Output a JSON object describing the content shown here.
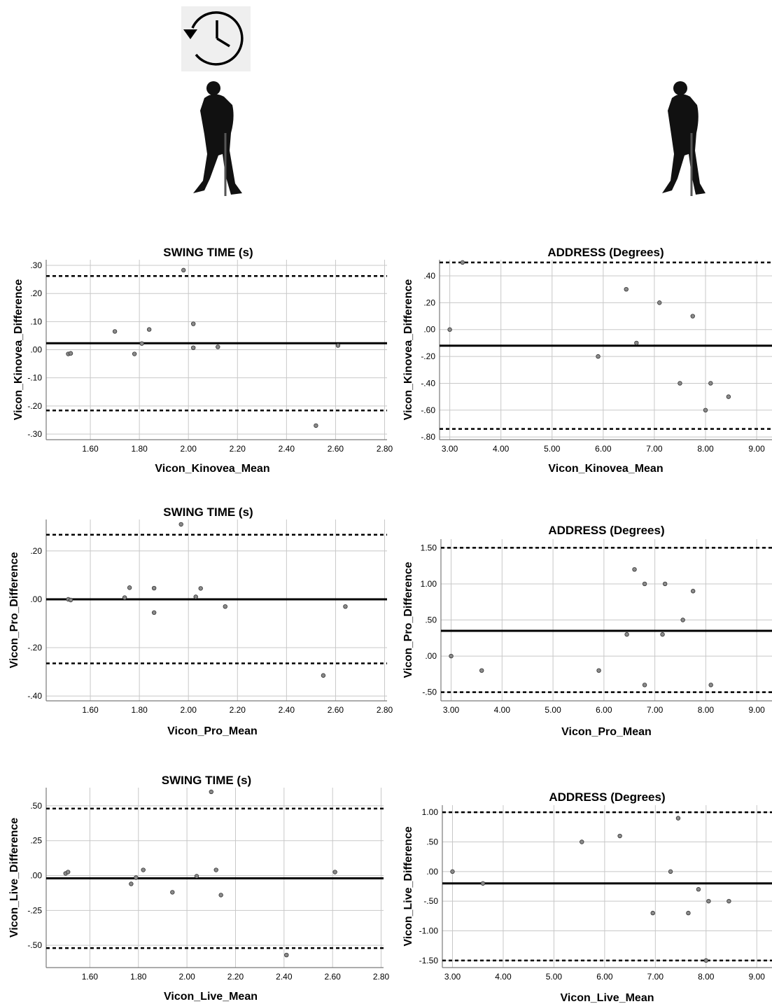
{
  "header": {
    "clock_icon": "history-clock-icon",
    "left_figure_icon": "golfer-silhouette-icon",
    "right_figure_icon": "golfer-silhouette-icon"
  },
  "colors": {
    "grid": "#c8c8c8",
    "axis": "#7a7a7a",
    "point_fill": "#8a8a8a",
    "point_stroke": "#333333",
    "line": "#000000"
  },
  "chart_data": [
    {
      "type": "scatter",
      "title": "SWING TIME (s)",
      "xlabel": "Vicon_Kinovea_Mean",
      "ylabel": "Vicon_Kinovea_Difference",
      "xlim": [
        1.42,
        2.81
      ],
      "ylim": [
        -0.32,
        0.32
      ],
      "xticks": [
        "1.60",
        "1.80",
        "2.00",
        "2.20",
        "2.40",
        "2.60",
        "2.80"
      ],
      "yticks": [
        ".30",
        ".20",
        ".10",
        ".00",
        "-.10",
        "-.20",
        "-.30"
      ],
      "mean_line": 0.023,
      "upper_loa": 0.262,
      "lower_loa": -0.216,
      "points": [
        {
          "x": 1.51,
          "y": -0.015
        },
        {
          "x": 1.52,
          "y": -0.013
        },
        {
          "x": 1.7,
          "y": 0.065
        },
        {
          "x": 1.78,
          "y": -0.015
        },
        {
          "x": 1.81,
          "y": 0.022
        },
        {
          "x": 1.84,
          "y": 0.072
        },
        {
          "x": 1.98,
          "y": 0.283
        },
        {
          "x": 2.02,
          "y": 0.092
        },
        {
          "x": 2.02,
          "y": 0.007
        },
        {
          "x": 2.12,
          "y": 0.01
        },
        {
          "x": 2.52,
          "y": -0.27
        },
        {
          "x": 2.61,
          "y": 0.015
        }
      ]
    },
    {
      "type": "scatter",
      "title": "ADDRESS (Degrees)",
      "xlabel": "Vicon_Kinovea_Mean",
      "ylabel": "Vicon_Kinovea_Difference",
      "xlim": [
        2.8,
        9.3
      ],
      "ylim": [
        -0.82,
        0.52
      ],
      "xticks": [
        "3.00",
        "4.00",
        "5.00",
        "6.00",
        "7.00",
        "8.00",
        "9.00"
      ],
      "yticks": [
        ".40",
        ".20",
        ".00",
        "-.20",
        "-.40",
        "-.60",
        "-.80"
      ],
      "mean_line": -0.12,
      "upper_loa": 0.5,
      "lower_loa": -0.74,
      "points": [
        {
          "x": 3.0,
          "y": 0.0
        },
        {
          "x": 3.25,
          "y": 0.5
        },
        {
          "x": 5.9,
          "y": -0.2
        },
        {
          "x": 6.45,
          "y": 0.3
        },
        {
          "x": 6.65,
          "y": -0.1
        },
        {
          "x": 7.1,
          "y": 0.2
        },
        {
          "x": 7.5,
          "y": -0.4
        },
        {
          "x": 7.75,
          "y": 0.1
        },
        {
          "x": 8.0,
          "y": -0.6
        },
        {
          "x": 8.1,
          "y": -0.4
        },
        {
          "x": 8.45,
          "y": -0.5
        }
      ]
    },
    {
      "type": "scatter",
      "title": "SWING TIME (s)",
      "xlabel": "Vicon_Pro_Mean",
      "ylabel": "Vicon_Pro_Difference",
      "xlim": [
        1.42,
        2.81
      ],
      "ylim": [
        -0.42,
        0.33
      ],
      "xticks": [
        "1.60",
        "1.80",
        "2.00",
        "2.20",
        "2.40",
        "2.60",
        "2.80"
      ],
      "yticks": [
        ".20",
        ".00",
        "-.20",
        "-.40"
      ],
      "mean_line": 0.0,
      "upper_loa": 0.267,
      "lower_loa": -0.265,
      "points": [
        {
          "x": 1.51,
          "y": 0.0
        },
        {
          "x": 1.52,
          "y": -0.003
        },
        {
          "x": 1.74,
          "y": 0.007
        },
        {
          "x": 1.76,
          "y": 0.048
        },
        {
          "x": 1.86,
          "y": 0.046
        },
        {
          "x": 1.86,
          "y": -0.055
        },
        {
          "x": 1.97,
          "y": 0.31
        },
        {
          "x": 2.03,
          "y": 0.01
        },
        {
          "x": 2.05,
          "y": 0.045
        },
        {
          "x": 2.15,
          "y": -0.03
        },
        {
          "x": 2.55,
          "y": -0.315
        },
        {
          "x": 2.64,
          "y": -0.03
        }
      ]
    },
    {
      "type": "scatter",
      "title": "ADDRESS (Degrees)",
      "xlabel": "Vicon_Pro_Mean",
      "ylabel": "Vicon_Pro_Difference",
      "xlim": [
        2.8,
        9.3
      ],
      "ylim": [
        -0.62,
        1.62
      ],
      "xticks": [
        "3.00",
        "4.00",
        "5.00",
        "6.00",
        "7.00",
        "8.00",
        "9.00"
      ],
      "yticks": [
        "1.50",
        "1.00",
        ".50",
        ".00",
        "-.50"
      ],
      "mean_line": 0.35,
      "upper_loa": 1.5,
      "lower_loa": -0.5,
      "points": [
        {
          "x": 3.0,
          "y": 0.0
        },
        {
          "x": 3.6,
          "y": -0.2
        },
        {
          "x": 5.9,
          "y": -0.2
        },
        {
          "x": 6.45,
          "y": 0.3
        },
        {
          "x": 6.6,
          "y": 1.2
        },
        {
          "x": 6.8,
          "y": 1.0
        },
        {
          "x": 6.8,
          "y": -0.4
        },
        {
          "x": 7.15,
          "y": 0.3
        },
        {
          "x": 7.2,
          "y": 1.0
        },
        {
          "x": 7.55,
          "y": 0.5
        },
        {
          "x": 7.75,
          "y": 0.9
        },
        {
          "x": 8.1,
          "y": -0.4
        }
      ]
    },
    {
      "type": "scatter",
      "title": "SWING TIME (s)",
      "xlabel": "Vicon_Live_Mean",
      "ylabel": "Vicon_Live_Difference",
      "xlim": [
        1.42,
        2.81
      ],
      "ylim": [
        -0.66,
        0.63
      ],
      "xticks": [
        "1.60",
        "1.80",
        "2.00",
        "2.20",
        "2.40",
        "2.60",
        "2.80"
      ],
      "yticks": [
        ".50",
        ".25",
        ".00",
        "-.25",
        "-.50"
      ],
      "mean_line": -0.02,
      "upper_loa": 0.48,
      "lower_loa": -0.52,
      "points": [
        {
          "x": 1.5,
          "y": 0.015
        },
        {
          "x": 1.51,
          "y": 0.025
        },
        {
          "x": 1.77,
          "y": -0.06
        },
        {
          "x": 1.79,
          "y": -0.015
        },
        {
          "x": 1.82,
          "y": 0.04
        },
        {
          "x": 1.94,
          "y": -0.12
        },
        {
          "x": 2.04,
          "y": -0.005
        },
        {
          "x": 2.1,
          "y": 0.6
        },
        {
          "x": 2.12,
          "y": 0.04
        },
        {
          "x": 2.14,
          "y": -0.14
        },
        {
          "x": 2.41,
          "y": -0.57
        },
        {
          "x": 2.61,
          "y": 0.025
        }
      ]
    },
    {
      "type": "scatter",
      "title": "ADDRESS (Degrees)",
      "xlabel": "Vicon_Live_Mean",
      "ylabel": "Vicon_Live_Difference",
      "xlim": [
        2.8,
        9.3
      ],
      "ylim": [
        -1.62,
        1.12
      ],
      "xticks": [
        "3.00",
        "4.00",
        "5.00",
        "6.00",
        "7.00",
        "8.00",
        "9.00"
      ],
      "yticks": [
        "1.00",
        ".50",
        ".00",
        "-.50",
        "-1.00",
        "-1.50"
      ],
      "mean_line": -0.2,
      "upper_loa": 1.0,
      "lower_loa": -1.5,
      "points": [
        {
          "x": 3.0,
          "y": 0.0
        },
        {
          "x": 3.6,
          "y": -0.2
        },
        {
          "x": 5.55,
          "y": 0.5
        },
        {
          "x": 6.3,
          "y": 0.6
        },
        {
          "x": 6.95,
          "y": -0.7
        },
        {
          "x": 7.3,
          "y": 0.0
        },
        {
          "x": 7.45,
          "y": 0.9
        },
        {
          "x": 7.65,
          "y": -0.7
        },
        {
          "x": 7.85,
          "y": -0.3
        },
        {
          "x": 8.0,
          "y": -1.5
        },
        {
          "x": 8.05,
          "y": -0.5
        },
        {
          "x": 8.45,
          "y": -0.5
        }
      ]
    }
  ]
}
